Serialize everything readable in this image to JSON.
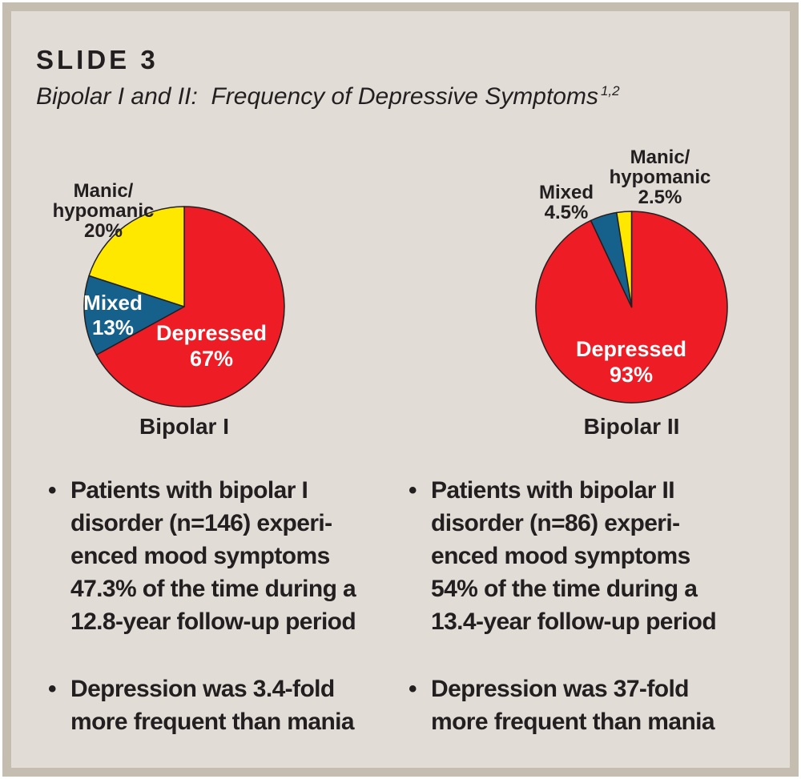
{
  "slide": {
    "kicker": "SLIDE 3",
    "title": "Bipolar I and II:  Frequency of Depressive Symptoms",
    "title_refs": "1,2"
  },
  "colors": {
    "background": "#e1ddd6",
    "frame": "#c5beb0",
    "text": "#231f20",
    "depressed_red": "#ee1c25",
    "mixed_blue": "#16618c",
    "manic_yellow": "#ffe800",
    "inside_label": "#ffffff"
  },
  "chart_data": [
    {
      "type": "pie",
      "title": "Bipolar I",
      "unit": "%",
      "start_angle_deg": 0,
      "direction": "clockwise",
      "outline": "#231f20",
      "legend": "none",
      "slices": [
        {
          "label": "Depressed",
          "value": 67,
          "color": "#ee1c25",
          "label_placement": "inside",
          "display_lines": [
            "Depressed",
            "67%"
          ]
        },
        {
          "label": "Mixed",
          "value": 13,
          "color": "#16618c",
          "label_placement": "inside",
          "display_lines": [
            "Mixed",
            "13%"
          ]
        },
        {
          "label": "Manic/hypomanic",
          "value": 20,
          "color": "#ffe800",
          "label_placement": "outside",
          "display_lines": [
            "Manic/",
            "hypomanic",
            "20%"
          ]
        }
      ]
    },
    {
      "type": "pie",
      "title": "Bipolar II",
      "unit": "%",
      "start_angle_deg": 0,
      "direction": "clockwise",
      "outline": "#231f20",
      "legend": "none",
      "slices": [
        {
          "label": "Depressed",
          "value": 93,
          "color": "#ee1c25",
          "label_placement": "inside",
          "display_lines": [
            "Depressed",
            "93%"
          ]
        },
        {
          "label": "Mixed",
          "value": 4.5,
          "color": "#16618c",
          "label_placement": "outside",
          "display_lines": [
            "Mixed",
            "4.5%"
          ]
        },
        {
          "label": "Manic/hypomanic",
          "value": 2.5,
          "color": "#ffe800",
          "label_placement": "outside",
          "display_lines": [
            "Manic/",
            "hypomanic",
            "2.5%"
          ]
        }
      ]
    }
  ],
  "bullets": {
    "marker": "•",
    "left": [
      {
        "lines": [
          "Patients with bipolar I",
          "disorder (n=146) experi-",
          "enced mood symptoms",
          "47.3% of the time during a",
          "12.8-year follow-up period"
        ]
      },
      {
        "lines": [
          "Depression was 3.4-fold",
          "more frequent than mania"
        ]
      }
    ],
    "right": [
      {
        "lines": [
          "Patients with bipolar II",
          "disorder (n=86) experi-",
          "enced mood symptoms",
          "54% of the time during a",
          "13.4-year follow-up period"
        ]
      },
      {
        "lines": [
          "Depression was 37-fold",
          "more frequent than mania"
        ]
      }
    ]
  }
}
